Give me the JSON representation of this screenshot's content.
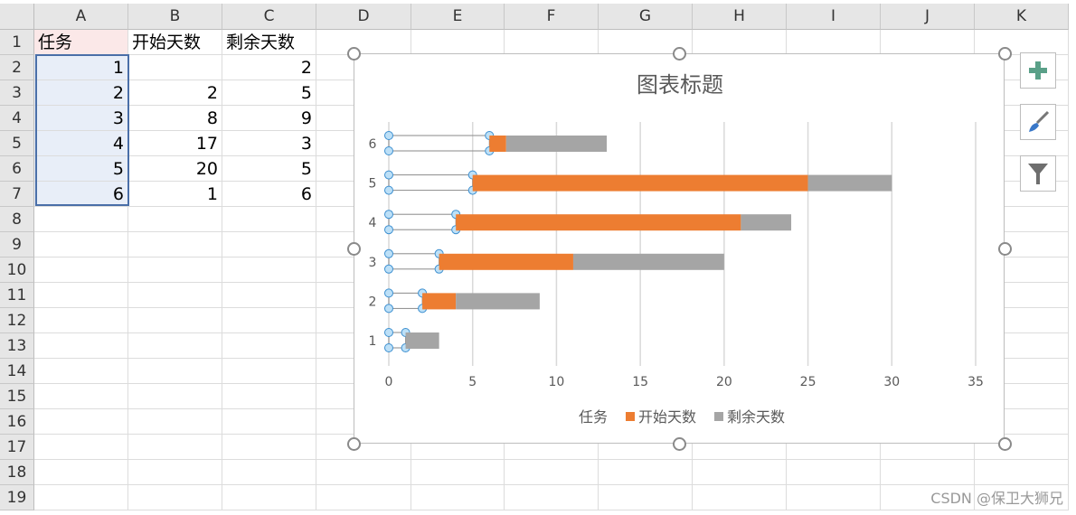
{
  "columns": [
    "A",
    "B",
    "C",
    "D",
    "E",
    "F",
    "G",
    "H",
    "I",
    "J",
    "K"
  ],
  "rows": [
    "1",
    "2",
    "3",
    "4",
    "5",
    "6",
    "7",
    "8",
    "9",
    "10",
    "11",
    "12",
    "13",
    "14",
    "15",
    "16",
    "17",
    "18",
    "19"
  ],
  "cells": [
    [
      "任务",
      "开始天数",
      "剩余天数"
    ],
    [
      "1",
      "",
      "2"
    ],
    [
      "2",
      "2",
      "5"
    ],
    [
      "3",
      "8",
      "9"
    ],
    [
      "4",
      "17",
      "3"
    ],
    [
      "5",
      "20",
      "5"
    ],
    [
      "6",
      "1",
      "6"
    ]
  ],
  "chart_data": {
    "type": "bar",
    "orientation": "horizontal",
    "stacked": true,
    "title": "图表标题",
    "categories": [
      "1",
      "2",
      "3",
      "4",
      "5",
      "6"
    ],
    "series": [
      {
        "name": "任务",
        "values": [
          1,
          2,
          3,
          4,
          5,
          6
        ],
        "color": "none",
        "selected": true
      },
      {
        "name": "开始天数",
        "values": [
          0,
          2,
          8,
          17,
          20,
          1
        ],
        "color": "#ED7D31"
      },
      {
        "name": "剩余天数",
        "values": [
          2,
          5,
          9,
          3,
          5,
          6
        ],
        "color": "#A5A5A5"
      }
    ],
    "xlim": [
      0,
      35
    ],
    "xticks": [
      "0",
      "5",
      "10",
      "15",
      "20",
      "25",
      "30",
      "35"
    ],
    "grid": true,
    "legend": "bottom"
  },
  "side_buttons": {
    "add": "plus-icon",
    "style": "brush-icon",
    "filter": "funnel-icon"
  },
  "watermark": "CSDN @保卫大狮兄"
}
